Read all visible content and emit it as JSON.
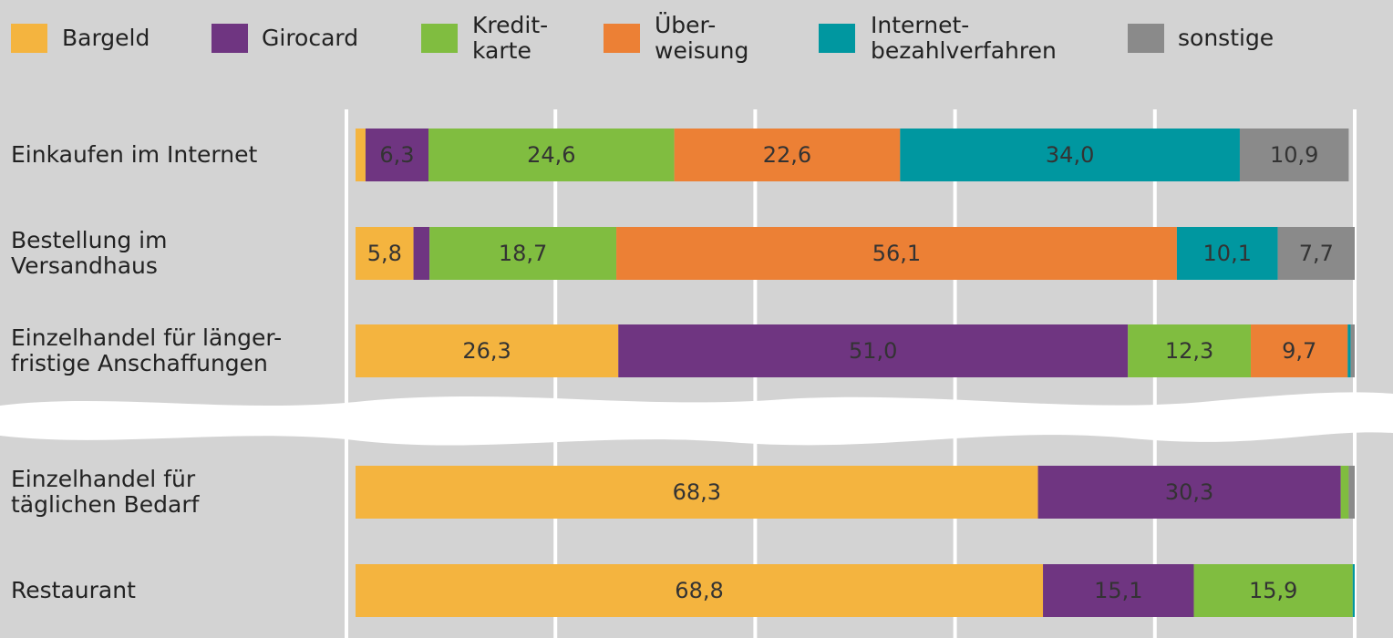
{
  "chart_data": {
    "type": "stacked-bar",
    "orientation": "horizontal",
    "categories": [
      "Einkaufen im Internet",
      "Bestellung im\nVersandhaus",
      "Einzelhandel für länger-\nfristige Anschaffungen",
      "Einzelhandel für\ntäglichen Bedarf",
      "Restaurant"
    ],
    "series": [
      {
        "name": "Bargeld",
        "color": "#f4b43f",
        "values": [
          1.0,
          5.8,
          26.3,
          68.3,
          68.8
        ],
        "value_labels": [
          null,
          "5,8",
          "26,3",
          "68,3",
          "68,8"
        ]
      },
      {
        "name": "Girocard",
        "color": "#6f3581",
        "values": [
          6.3,
          1.6,
          51.0,
          30.3,
          15.1
        ],
        "value_labels": [
          "6,3",
          null,
          "51,0",
          "30,3",
          "15,1"
        ]
      },
      {
        "name": "Kredit-\nkarte",
        "color": "#80bd40",
        "values": [
          24.6,
          18.7,
          12.3,
          0.8,
          15.9
        ],
        "value_labels": [
          "24,6",
          "18,7",
          "12,3",
          null,
          "15,9"
        ]
      },
      {
        "name": "Über-\nweisung",
        "color": "#ec8035",
        "values": [
          22.6,
          56.1,
          9.7,
          0,
          0
        ],
        "value_labels": [
          "22,6",
          "56,1",
          "9,7",
          null,
          null
        ]
      },
      {
        "name": "Internet-\nbezahlverfahren",
        "color": "#0097a0",
        "values": [
          34.0,
          10.1,
          0.3,
          0,
          0.2
        ],
        "value_labels": [
          "34,0",
          "10,1",
          null,
          null,
          null
        ]
      },
      {
        "name": "sonstige",
        "color": "#8a8a8a",
        "values": [
          10.9,
          7.7,
          0.4,
          0.6,
          0
        ],
        "value_labels": [
          "10,9",
          "7,7",
          null,
          null,
          null
        ]
      }
    ],
    "xlim": [
      0,
      100
    ],
    "xticks": [
      0,
      20,
      40,
      60,
      80,
      100
    ],
    "grid": true
  }
}
